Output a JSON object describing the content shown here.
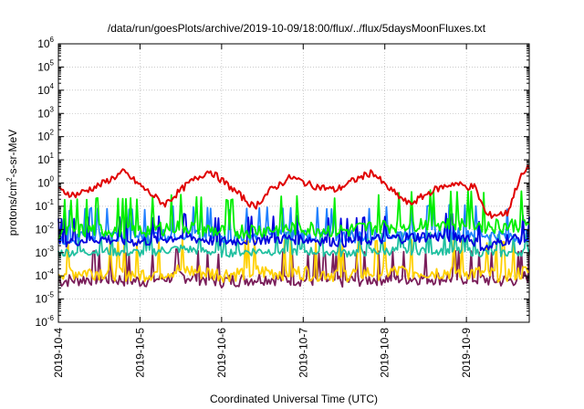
{
  "chart_data": {
    "type": "line",
    "title": "/data/run/goesPlots/archive/2019-10-09/18:00/flux/../flux/5daysMoonFluxes.txt",
    "xlabel": "Coordinated Universal Time (UTC)",
    "ylabel": "protons/cm2-s-sr-MeV",
    "ylabel_parts": [
      "protons/cm",
      "2",
      "-s-sr-MeV"
    ],
    "y_scale": "log",
    "ylim": [
      1e-06,
      1000000.0
    ],
    "y_ticks": [
      {
        "base": "10",
        "exp": "-6"
      },
      {
        "base": "10",
        "exp": "-5"
      },
      {
        "base": "10",
        "exp": "-4"
      },
      {
        "base": "10",
        "exp": "-3"
      },
      {
        "base": "10",
        "exp": "-2"
      },
      {
        "base": "10",
        "exp": "-1"
      },
      {
        "base": "10",
        "exp": "0"
      },
      {
        "base": "10",
        "exp": "1"
      },
      {
        "base": "10",
        "exp": "2"
      },
      {
        "base": "10",
        "exp": "3"
      },
      {
        "base": "10",
        "exp": "4"
      },
      {
        "base": "10",
        "exp": "5"
      },
      {
        "base": "10",
        "exp": "6"
      }
    ],
    "xlim": [
      "2019-10-04",
      "2019-10-09T18:00"
    ],
    "x_ticks": [
      "2019-10-4",
      "2019-10-5",
      "2019-10-6",
      "2019-10-7",
      "2019-10-8",
      "2019-10-9"
    ],
    "grid": true,
    "series": [
      {
        "color": "#e00000",
        "x": [
          0,
          0.2,
          0.5,
          0.8,
          1.0,
          1.3,
          1.6,
          1.85,
          2.1,
          2.4,
          2.6,
          2.85,
          3.1,
          3.4,
          3.6,
          3.85,
          4.0,
          4.3,
          4.6,
          4.85,
          5.0,
          5.1,
          5.25,
          5.5,
          5.65,
          5.77
        ],
        "values": [
          0.5,
          0.3,
          0.8,
          3,
          0.8,
          0.12,
          1,
          3.5,
          0.7,
          0.09,
          0.5,
          1.8,
          0.8,
          0.5,
          1.2,
          3,
          0.8,
          0.12,
          0.5,
          1,
          0.7,
          0.7,
          0.04,
          0.05,
          1.5,
          5
        ]
      },
      {
        "color": "#00ee00",
        "x": [
          0,
          0.5,
          1.0,
          1.5,
          2.0,
          2.5,
          3.0,
          3.5,
          4.0,
          4.5,
          5.0,
          5.25,
          5.5,
          5.77
        ],
        "values": [
          0.008,
          0.01,
          0.009,
          0.015,
          0.008,
          0.01,
          0.012,
          0.009,
          0.015,
          0.02,
          0.02,
          0.015,
          0.015,
          0.02
        ]
      },
      {
        "color": "#0000dd",
        "x": [
          0,
          0.5,
          1.0,
          1.5,
          2.0,
          2.5,
          3.0,
          3.5,
          4.0,
          4.5,
          5.0,
          5.25,
          5.5,
          5.77
        ],
        "values": [
          0.003,
          0.004,
          0.003,
          0.005,
          0.003,
          0.004,
          0.004,
          0.003,
          0.004,
          0.005,
          0.005,
          0.0015,
          0.004,
          0.004
        ]
      },
      {
        "color": "#2080ff",
        "x": [
          0,
          0.5,
          1.0,
          1.5,
          2.0,
          2.5,
          3.0,
          3.5,
          4.0,
          4.5,
          5.0,
          5.25,
          5.5,
          5.77
        ],
        "values": [
          0.004,
          0.006,
          0.005,
          0.007,
          0.005,
          0.006,
          0.006,
          0.005,
          0.006,
          0.007,
          0.008,
          0.006,
          0.005,
          0.006
        ]
      },
      {
        "color": "#20c0a0",
        "x": [
          0,
          0.5,
          1.0,
          1.5,
          2.0,
          2.5,
          3.0,
          3.5,
          4.0,
          4.5,
          5.0,
          5.25,
          5.5,
          5.77
        ],
        "values": [
          0.001,
          0.0012,
          0.001,
          0.0015,
          0.001,
          0.0012,
          0.0012,
          0.001,
          0.0012,
          0.0013,
          0.0012,
          0.001,
          0.001,
          0.0012
        ]
      },
      {
        "color": "#ffd000",
        "x": [
          0,
          0.5,
          1.0,
          1.5,
          2.0,
          2.5,
          3.0,
          3.5,
          4.0,
          4.5,
          5.0,
          5.25,
          5.5,
          5.77
        ],
        "values": [
          0.00015,
          0.00015,
          0.00012,
          0.00018,
          0.00012,
          0.00015,
          0.00014,
          0.00012,
          0.00015,
          0.00015,
          0.00015,
          0.00012,
          0.00012,
          0.00015
        ]
      },
      {
        "color": "#7a1e5a",
        "x": [
          0,
          0.5,
          1.0,
          1.5,
          2.0,
          2.5,
          3.0,
          3.5,
          4.0,
          4.5,
          5.0,
          5.25,
          5.5,
          5.77
        ],
        "values": [
          6e-05,
          8e-05,
          6e-05,
          0.0001,
          6e-05,
          8e-05,
          7e-05,
          6e-05,
          8e-05,
          8e-05,
          8e-05,
          7e-05,
          6e-05,
          0.0001
        ]
      }
    ]
  }
}
